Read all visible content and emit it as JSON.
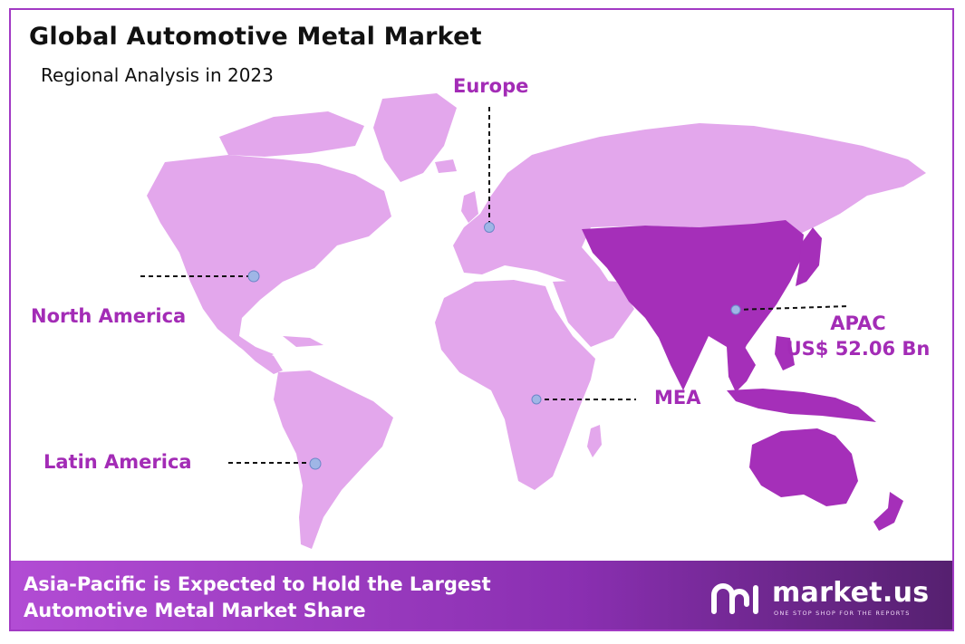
{
  "header": {
    "title": "Global Automotive Metal Market",
    "subtitle": "Regional Analysis in 2023"
  },
  "regions": {
    "europe": "Europe",
    "north_america": "North America",
    "latin_america": "Latin America",
    "mea": "MEA",
    "apac": "APAC",
    "apac_value": "US$ 52.06 Bn"
  },
  "footer": {
    "line1": "Asia-Pacific is Expected to Hold the Largest",
    "line2": "Automotive Metal Market Share"
  },
  "brand": {
    "name": "market.us",
    "tagline": "ONE STOP SHOP FOR THE REPORTS",
    "logo_icon": "market-us-logo"
  },
  "colors": {
    "land": "#e3a7ec",
    "apac_highlight": "#a52fb9",
    "label": "#a32cb6",
    "border": "#a23ac4",
    "marker": "#9fb6e6"
  }
}
